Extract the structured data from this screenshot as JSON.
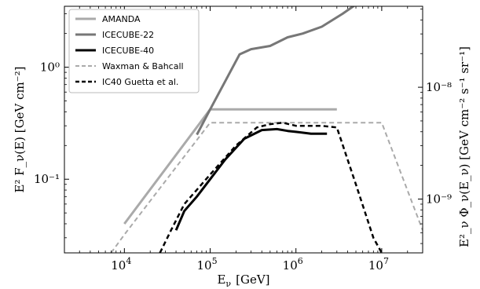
{
  "chart_data": {
    "type": "line",
    "xlabel_base": "E",
    "xlabel_sub": "ν",
    "xlabel_unit": "[GeV]",
    "ylabel_left": "E² F_ν(E) [GeV cm⁻²]",
    "ylabel_right": "E²_ν Φ_ν(E_ν) [GeV cm⁻² s⁻¹ sr⁻¹]",
    "x_scale": "log",
    "y_scale": "log",
    "xlim": [
      2000,
      30000000
    ],
    "ylim_left": [
      0.022,
      3.5
    ],
    "ylim_right": [
      3.3e-10,
      5.3e-08
    ],
    "x_ticks": [
      {
        "value": 10000,
        "mant": "10",
        "exp": "4"
      },
      {
        "value": 100000,
        "mant": "10",
        "exp": "5"
      },
      {
        "value": 1000000,
        "mant": "10",
        "exp": "6"
      },
      {
        "value": 10000000,
        "mant": "10",
        "exp": "7"
      }
    ],
    "y_ticks_left": [
      {
        "value": 0.1,
        "label": "10⁻¹"
      },
      {
        "value": 1,
        "label": "10⁰"
      }
    ],
    "y_ticks_right": [
      {
        "value": 1e-09,
        "label": "10⁻⁹"
      },
      {
        "value": 1e-08,
        "label": "10⁻⁸"
      }
    ],
    "legend_position": "top-left",
    "series": [
      {
        "name": "AMANDA",
        "color": "#aaaaaa",
        "dash": "solid",
        "width": 3,
        "points": [
          [
            10000,
            0.04
          ],
          [
            100000,
            0.42
          ],
          [
            3000000,
            0.42
          ]
        ]
      },
      {
        "name": "ICECUBE-22",
        "color": "#777777",
        "dash": "solid",
        "width": 3,
        "points": [
          [
            70000,
            0.25
          ],
          [
            100000,
            0.42
          ],
          [
            150000,
            0.75
          ],
          [
            220000,
            1.3
          ],
          [
            300000,
            1.45
          ],
          [
            500000,
            1.55
          ],
          [
            800000,
            1.85
          ],
          [
            1200000,
            2.0
          ],
          [
            2000000,
            2.3
          ],
          [
            3500000,
            3.0
          ],
          [
            6000000,
            4.0
          ]
        ]
      },
      {
        "name": "ICECUBE-40",
        "color": "#000000",
        "dash": "solid",
        "width": 3,
        "points": [
          [
            40000,
            0.035
          ],
          [
            50000,
            0.052
          ],
          [
            70000,
            0.07
          ],
          [
            100000,
            0.1
          ],
          [
            150000,
            0.15
          ],
          [
            250000,
            0.23
          ],
          [
            400000,
            0.275
          ],
          [
            600000,
            0.28
          ],
          [
            800000,
            0.27
          ],
          [
            1000000,
            0.265
          ],
          [
            1500000,
            0.255
          ],
          [
            2300000,
            0.255
          ]
        ]
      },
      {
        "name": "Waxman & Bahcall",
        "color": "#aaaaaa",
        "dash": "dashed",
        "width": 2,
        "points": [
          [
            7000,
            0.022
          ],
          [
            10000,
            0.032
          ],
          [
            100000,
            0.32
          ],
          [
            10000000,
            0.32
          ],
          [
            30000000,
            0.035
          ]
        ]
      },
      {
        "name": "IC40 Guetta et al.",
        "color": "#000000",
        "dash": "dashed",
        "width": 2.5,
        "points": [
          [
            26000,
            0.022
          ],
          [
            35000,
            0.035
          ],
          [
            50000,
            0.06
          ],
          [
            100000,
            0.11
          ],
          [
            200000,
            0.2
          ],
          [
            350000,
            0.29
          ],
          [
            500000,
            0.31
          ],
          [
            700000,
            0.32
          ],
          [
            1000000,
            0.3
          ],
          [
            2000000,
            0.3
          ],
          [
            3000000,
            0.29
          ],
          [
            5000000,
            0.09
          ],
          [
            8000000,
            0.03
          ],
          [
            10000000,
            0.022
          ]
        ]
      }
    ]
  }
}
